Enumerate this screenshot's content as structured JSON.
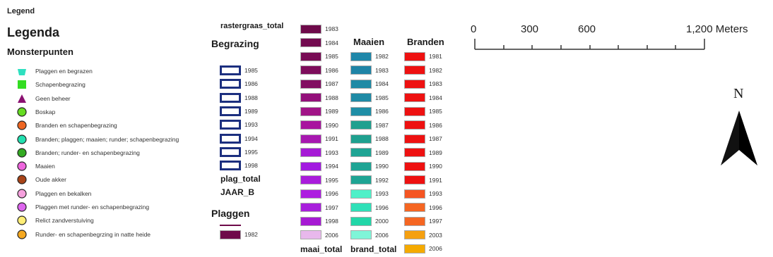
{
  "titles": {
    "legend": "Legend",
    "legenda": "Legenda",
    "monsterpunten": "Monsterpunten",
    "begrazing": "Begrazing",
    "plaggen": "Plaggen",
    "maaien": "Maaien",
    "branden": "Branden",
    "rastergraas_total": "rastergraas_total",
    "plag_total": "plag_total",
    "jaar_b": "JAAR_B",
    "maai_total": "maai_total",
    "brand_total": "brand_total"
  },
  "monsterpunten": [
    {
      "label": "Plaggen en begrazen",
      "shape": "pentagon",
      "color": "#2fe0c0"
    },
    {
      "label": "Schapenbegrazing",
      "shape": "square",
      "color": "#33dd22"
    },
    {
      "label": "Geen beheer",
      "shape": "triangle",
      "color": "#8a1070"
    },
    {
      "label": "Boskap",
      "shape": "circle",
      "color": "#66dd22"
    },
    {
      "label": "Branden en schapenbegrazing",
      "shape": "circle",
      "color": "#ee6622"
    },
    {
      "label": "Branden; plaggen; maaien; runder; schapenbegrazing",
      "shape": "circle",
      "color": "#22e0b0"
    },
    {
      "label": "Branden; runder- en schapenbegrazing",
      "shape": "circle",
      "color": "#33aa22"
    },
    {
      "label": "Maaien",
      "shape": "circle",
      "color": "#ee66dd"
    },
    {
      "label": "Oude akker",
      "shape": "circle",
      "color": "#a84418"
    },
    {
      "label": "Plaggen en bekalken",
      "shape": "circle",
      "color": "#f5a0dd"
    },
    {
      "label": "Plaggen met runder- en schapenbegrazing",
      "shape": "circle",
      "color": "#dd66ee"
    },
    {
      "label": "Relict zandverstuiving",
      "shape": "circle",
      "color": "#ffee77"
    },
    {
      "label": "Runder- en schapenbegrzing in natte heide",
      "shape": "circle",
      "color": "#f5a820"
    }
  ],
  "begrazing": [
    "1985",
    "1986",
    "1988",
    "1989",
    "1993",
    "1994",
    "1995",
    "1998"
  ],
  "plaggen_item": {
    "label": "1982",
    "color": "#6e0a4a"
  },
  "plaggen_col": [
    {
      "label": "1983",
      "color": "#6e0a4a"
    },
    {
      "label": "1984",
      "color": "#730b50"
    },
    {
      "label": "1985",
      "color": "#780c55"
    },
    {
      "label": "1986",
      "color": "#7d0d5b"
    },
    {
      "label": "1987",
      "color": "#820e62"
    },
    {
      "label": "1988",
      "color": "#93107a"
    },
    {
      "label": "1989",
      "color": "#a11487"
    },
    {
      "label": "1990",
      "color": "#a8159e"
    },
    {
      "label": "1991",
      "color": "#a718b0"
    },
    {
      "label": "1993",
      "color": "#a61ad6"
    },
    {
      "label": "1994",
      "color": "#a21ae0"
    },
    {
      "label": "1995",
      "color": "#a91cdb"
    },
    {
      "label": "1996",
      "color": "#ad1de0"
    },
    {
      "label": "1997",
      "color": "#a81fdc"
    },
    {
      "label": "1998",
      "color": "#a61ad3"
    },
    {
      "label": "2006",
      "color": "#e8b8ec"
    }
  ],
  "maaien": [
    {
      "label": "1982",
      "color": "#1f87a9"
    },
    {
      "label": "1983",
      "color": "#1f84a6"
    },
    {
      "label": "1984",
      "color": "#1f8aa5"
    },
    {
      "label": "1985",
      "color": "#1f8aa5"
    },
    {
      "label": "1986",
      "color": "#1f8ea6"
    },
    {
      "label": "1987",
      "color": "#1fa08f"
    },
    {
      "label": "1988",
      "color": "#1fa08f"
    },
    {
      "label": "1989",
      "color": "#1fa494"
    },
    {
      "label": "1990",
      "color": "#1fa494"
    },
    {
      "label": "1992",
      "color": "#1fa494"
    },
    {
      "label": "1993",
      "color": "#4ff0c8"
    },
    {
      "label": "1996",
      "color": "#2fe0b8"
    },
    {
      "label": "2000",
      "color": "#22d6a8"
    },
    {
      "label": "2006",
      "color": "#7ff5d8"
    }
  ],
  "branden": [
    {
      "label": "1981",
      "color": "#ee1111"
    },
    {
      "label": "1982",
      "color": "#ee1111"
    },
    {
      "label": "1983",
      "color": "#ee1111"
    },
    {
      "label": "1984",
      "color": "#ee1111"
    },
    {
      "label": "1985",
      "color": "#ee1111"
    },
    {
      "label": "1986",
      "color": "#ee1111"
    },
    {
      "label": "1987",
      "color": "#ee1111"
    },
    {
      "label": "1989",
      "color": "#ee1111"
    },
    {
      "label": "1990",
      "color": "#ee1111"
    },
    {
      "label": "1991",
      "color": "#ee1111"
    },
    {
      "label": "1993",
      "color": "#f55522"
    },
    {
      "label": "1996",
      "color": "#f56622"
    },
    {
      "label": "1997",
      "color": "#f56622"
    },
    {
      "label": "2003",
      "color": "#f5a010"
    },
    {
      "label": "2006",
      "color": "#f5aa00"
    }
  ],
  "scale": {
    "labels": [
      "0",
      "300",
      "600",
      "1,200 Meters"
    ]
  },
  "north_arrow": {
    "label": "N"
  }
}
